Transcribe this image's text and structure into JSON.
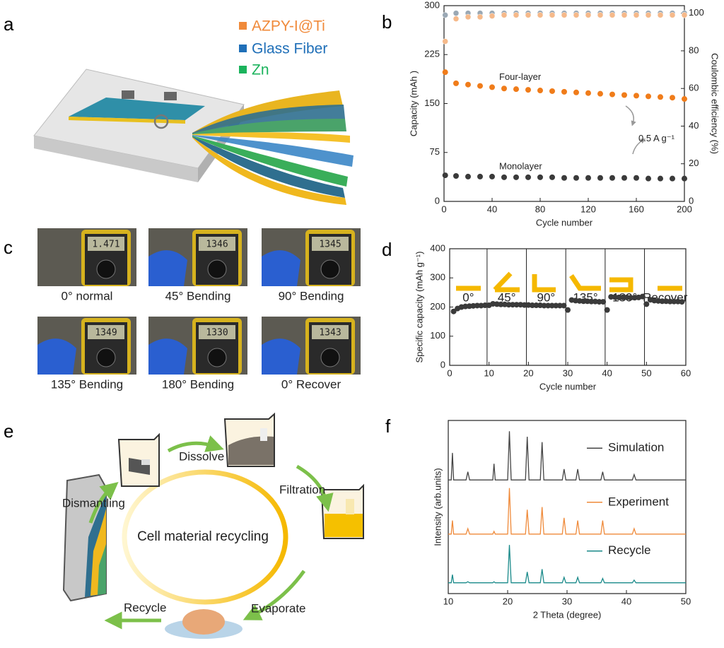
{
  "panels": {
    "a": {
      "label": "a",
      "legend": [
        "AZPY-I@Ti",
        "Glass Fiber",
        "Zn"
      ]
    },
    "c": {
      "label": "c",
      "photos": [
        {
          "reading": "1.471",
          "caption": "0° normal"
        },
        {
          "reading": "1346",
          "caption": "45° Bending"
        },
        {
          "reading": "1345",
          "caption": "90° Bending"
        },
        {
          "reading": "1349",
          "caption": "135° Bending"
        },
        {
          "reading": "1330",
          "caption": "180° Bending"
        },
        {
          "reading": "1343",
          "caption": "0° Recover"
        }
      ]
    },
    "e": {
      "label": "e",
      "center": "Cell material recycling",
      "steps": [
        "Dissolve",
        "Filtration",
        "Evaporate",
        "Recycle",
        "Dismantling"
      ]
    }
  },
  "chart_data": [
    {
      "type": "scatter",
      "panel": "b",
      "x": [
        1,
        10,
        20,
        30,
        40,
        50,
        60,
        70,
        80,
        90,
        100,
        110,
        120,
        130,
        140,
        150,
        160,
        170,
        180,
        190,
        200
      ],
      "series": [
        {
          "name": "Four-layer",
          "color": "#f07c1a",
          "values": [
            198,
            181,
            179,
            177,
            175,
            173,
            172,
            171,
            170,
            169,
            168,
            167,
            166,
            165,
            164,
            163,
            162,
            161,
            160,
            159,
            157
          ]
        },
        {
          "name": "Monolayer",
          "color": "#3a3a3a",
          "values": [
            40,
            39,
            38,
            38,
            38,
            37,
            37,
            37,
            37,
            37,
            36,
            36,
            36,
            36,
            36,
            36,
            36,
            35,
            35,
            35,
            35
          ]
        },
        {
          "color": "#9aa8b4",
          "axis": "y2",
          "values": [
            99,
            100,
            100,
            100,
            100,
            100,
            100,
            100,
            100,
            100,
            100,
            100,
            100,
            100,
            100,
            100,
            100,
            100,
            100,
            100,
            100
          ]
        },
        {
          "color": "#f5b98a",
          "axis": "y2",
          "values": [
            85,
            97,
            98,
            98,
            98.5,
            99,
            99,
            99,
            99,
            99,
            99,
            99,
            99,
            99,
            99,
            99,
            99,
            99,
            99,
            99,
            99
          ]
        }
      ],
      "annotations": [
        "0.5 A g⁻¹"
      ],
      "xlabel": "Cycle number",
      "ylabel": "Capacity (mAh )",
      "y2label": "Coulombic efficiency (%)",
      "xlim": [
        0,
        200
      ],
      "xticks": [
        0,
        40,
        80,
        120,
        160,
        200
      ],
      "ylim": [
        0,
        300
      ],
      "yticks": [
        0,
        75,
        150,
        225,
        300
      ],
      "y2lim": [
        0,
        104
      ],
      "y2ticks": [
        0,
        20,
        40,
        60,
        80,
        100
      ]
    },
    {
      "type": "scatter",
      "panel": "d",
      "x": [
        1,
        2,
        3,
        4,
        5,
        6,
        7,
        8,
        9,
        10,
        11,
        12,
        13,
        14,
        15,
        16,
        17,
        18,
        19,
        20,
        21,
        22,
        23,
        24,
        25,
        26,
        27,
        28,
        29,
        30,
        31,
        32,
        33,
        34,
        35,
        36,
        37,
        38,
        39,
        40,
        41,
        42,
        43,
        44,
        45,
        46,
        47,
        48,
        49,
        50,
        51,
        52,
        53,
        54,
        55,
        56,
        57,
        58,
        59
      ],
      "series": [
        {
          "color": "#3a3a3a",
          "values": [
            185,
            195,
            200,
            202,
            203,
            204,
            205,
            205,
            206,
            206,
            211,
            210,
            209,
            209,
            208,
            208,
            208,
            208,
            207,
            207,
            206,
            206,
            206,
            205,
            205,
            205,
            205,
            205,
            205,
            190,
            224,
            222,
            221,
            220,
            220,
            219,
            219,
            218,
            218,
            190,
            235,
            234,
            233,
            233,
            233,
            232,
            232,
            233,
            236,
            210,
            225,
            222,
            221,
            220,
            220,
            219,
            219,
            219,
            218
          ]
        }
      ],
      "dividers": [
        9.5,
        19.5,
        29.5,
        39.5,
        49.5
      ],
      "segments": [
        "0°",
        "45°",
        "90°",
        "135°",
        "180°",
        "Recover"
      ],
      "xlabel": "Cycle number",
      "ylabel": "Specific capacity (mAh g⁻¹)",
      "xlim": [
        0,
        60
      ],
      "xticks": [
        0,
        10,
        20,
        30,
        40,
        50,
        60
      ],
      "ylim": [
        0,
        400
      ],
      "yticks": [
        0,
        100,
        200,
        300,
        400
      ]
    },
    {
      "type": "line",
      "panel": "f",
      "x": [
        10,
        10.5,
        10.7,
        10.9,
        13.0,
        13.3,
        13.6,
        17.5,
        17.7,
        17.9,
        20.0,
        20.3,
        20.6,
        23.0,
        23.3,
        23.6,
        25.5,
        25.8,
        26.1,
        29.2,
        29.5,
        29.8,
        31.5,
        31.8,
        32.1,
        35.7,
        36,
        36.3,
        41,
        41.3,
        41.6,
        50
      ],
      "series": [
        {
          "name": "Simulation",
          "color": "#444444",
          "values": [
            2.1,
            2.1,
            2.6,
            2.1,
            2.1,
            2.25,
            2.1,
            2.1,
            2.4,
            2.1,
            2.1,
            3.0,
            2.1,
            2.1,
            2.9,
            2.1,
            2.1,
            2.8,
            2.1,
            2.1,
            2.3,
            2.1,
            2.1,
            2.3,
            2.1,
            2.1,
            2.25,
            2.1,
            2.1,
            2.2,
            2.1,
            2.1
          ]
        },
        {
          "name": "Experiment",
          "color": "#ef8a3a",
          "values": [
            1.1,
            1.1,
            1.35,
            1.1,
            1.1,
            1.2,
            1.1,
            1.1,
            1.15,
            1.1,
            1.1,
            1.95,
            1.1,
            1.1,
            1.55,
            1.1,
            1.1,
            1.6,
            1.1,
            1.1,
            1.4,
            1.1,
            1.1,
            1.35,
            1.1,
            1.1,
            1.35,
            1.1,
            1.1,
            1.2,
            1.1,
            1.1
          ]
        },
        {
          "name": "Recycle",
          "color": "#1a8a8a",
          "values": [
            0.2,
            0.2,
            0.35,
            0.2,
            0.2,
            0.22,
            0.2,
            0.2,
            0.22,
            0.2,
            0.2,
            0.9,
            0.2,
            0.2,
            0.4,
            0.2,
            0.2,
            0.45,
            0.2,
            0.2,
            0.3,
            0.2,
            0.2,
            0.3,
            0.2,
            0.2,
            0.28,
            0.2,
            0.2,
            0.25,
            0.2,
            0.2
          ]
        }
      ],
      "xlabel": "2 Theta (degree)",
      "ylabel": "Intensity (arb.units)",
      "xlim": [
        10,
        50
      ],
      "xticks": [
        10,
        20,
        30,
        40,
        50
      ],
      "ylim": [
        0,
        3.2
      ]
    }
  ]
}
